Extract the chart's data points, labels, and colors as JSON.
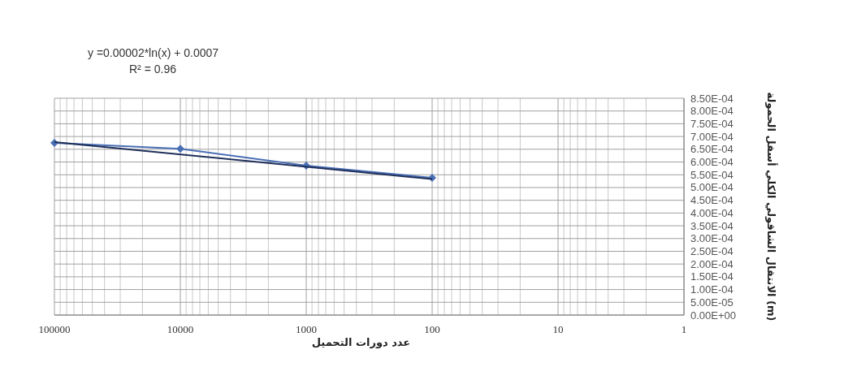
{
  "chart_data": {
    "type": "line",
    "xlabel": "عدد دورات التحميل",
    "ylabel": "الانتقال الشاقولي الكلي أسفل الحمولة (m)",
    "annotations": [
      "y =0.00002*ln(x) + 0.0007",
      "R² = 0.96"
    ],
    "log": "x",
    "grid": true,
    "xlim": [
      100000,
      1
    ],
    "xticks": [
      100000,
      10000,
      1000,
      100,
      10,
      1
    ],
    "ylim": [
      0,
      0.00085
    ],
    "yticks": [
      {
        "value": 0,
        "label": "0.00E+00"
      },
      {
        "value": 5e-05,
        "label": "5.00E-05"
      },
      {
        "value": 0.0001,
        "label": "1.00E-04"
      },
      {
        "value": 0.00015,
        "label": "1.50E-04"
      },
      {
        "value": 0.0002,
        "label": "2.00E-04"
      },
      {
        "value": 0.00025,
        "label": "2.50E-04"
      },
      {
        "value": 0.0003,
        "label": "3.00E-04"
      },
      {
        "value": 0.00035,
        "label": "3.50E-04"
      },
      {
        "value": 0.0004,
        "label": "4.00E-04"
      },
      {
        "value": 0.00045,
        "label": "4.50E-04"
      },
      {
        "value": 0.0005,
        "label": "5.00E-04"
      },
      {
        "value": 0.00055,
        "label": "5.50E-04"
      },
      {
        "value": 0.0006,
        "label": "6.00E-04"
      },
      {
        "value": 0.00065,
        "label": "6.50E-04"
      },
      {
        "value": 0.0007,
        "label": "7.00E-04"
      },
      {
        "value": 0.00075,
        "label": "7.50E-04"
      },
      {
        "value": 0.0008,
        "label": "8.00E-04"
      },
      {
        "value": 0.00085,
        "label": "8.50E-04"
      }
    ],
    "series": [
      {
        "color": "#4a6fb5",
        "marker": "diamond",
        "x": [
          100000,
          10000,
          1000,
          100
        ],
        "values": [
          0.000675,
          0.000652,
          0.000586,
          0.000538
        ]
      },
      {
        "color": "#1f2f5a",
        "marker": "none",
        "x": [
          100000,
          100
        ],
        "values": [
          0.000678,
          0.000533
        ]
      }
    ]
  }
}
